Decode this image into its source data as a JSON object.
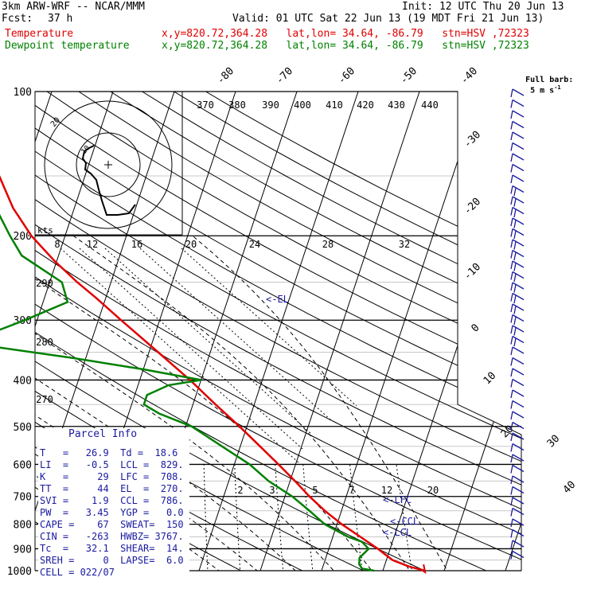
{
  "header": {
    "model": "3km ARW-WRF -- NCAR/MMM",
    "init": "Init: 12 UTC Thu 20 Jun 13",
    "fcst_label": "Fcst:",
    "fcst_value": "37 h",
    "valid": "Valid: 01 UTC Sat 22 Jun 13 (19 MDT Fri 21 Jun 13)",
    "temp_label": "Temperature",
    "temp_info": "x,y=820.72,364.28   lat,lon= 34.64, -86.79   stn=HSV ,72323",
    "dew_label": "Dewpoint temperature",
    "dew_info": "x,y=820.72,364.28   lat,lon= 34.64, -86.79   stn=HSV ,72323",
    "barb_note_1": "Full barb:",
    "barb_note_2": "5 m s",
    "barb_note_sup": "-1"
  },
  "colors": {
    "temperature": "#e00000",
    "dewpoint": "#008000",
    "parcel_text": "#1a1aa0",
    "barbs": "#1a1aa0"
  },
  "chart_data": {
    "type": "line",
    "skewt": true,
    "pressure_levels": [
      "100",
      "200",
      "300",
      "400",
      "500",
      "600",
      "700",
      "800",
      "900",
      "1000"
    ],
    "temperature_ticks": [
      "-80",
      "-70",
      "-60",
      "-50",
      "-40",
      "-30",
      "-20",
      "-10",
      "0",
      "10",
      "20",
      "30",
      "40"
    ],
    "theta_labels": [
      "370",
      "380",
      "390",
      "400",
      "410",
      "420",
      "430",
      "440",
      "290",
      "280",
      "270"
    ],
    "hodograph": {
      "units": "kts",
      "ring_labels": [
        "8",
        "12",
        "16",
        "20",
        "24",
        "28",
        "32"
      ],
      "ring_label_inner": "20",
      "ring_label_small": "10"
    },
    "mixing_ratio_labels": [
      "2",
      "3",
      "5",
      "7",
      "12",
      "20"
    ],
    "annotations": [
      "<-EL",
      "<-LFC",
      "<-CCL",
      "<-LCL"
    ],
    "series": [
      {
        "name": "Temperature",
        "color": "#e00000",
        "points": [
          [
            1000,
            26.9
          ],
          [
            980,
            24
          ],
          [
            950,
            21
          ],
          [
            925,
            19.5
          ],
          [
            900,
            18
          ],
          [
            850,
            14.5
          ],
          [
            800,
            10.8
          ],
          [
            750,
            7.3
          ],
          [
            700,
            4
          ],
          [
            650,
            0.8
          ],
          [
            600,
            -2.8
          ],
          [
            550,
            -6.8
          ],
          [
            500,
            -11.2
          ],
          [
            450,
            -16.3
          ],
          [
            400,
            -21.8
          ],
          [
            350,
            -28.5
          ],
          [
            300,
            -36.3
          ],
          [
            270,
            -41.5
          ],
          [
            250,
            -45.5
          ],
          [
            225,
            -50.5
          ],
          [
            200,
            -55.5
          ],
          [
            175,
            -60
          ],
          [
            150,
            -64
          ],
          [
            130,
            -67
          ],
          [
            115,
            -68
          ],
          [
            100,
            -70
          ]
        ]
      },
      {
        "name": "Dewpoint temperature",
        "color": "#008000",
        "points": [
          [
            1000,
            18.6
          ],
          [
            990,
            16.5
          ],
          [
            970,
            15.8
          ],
          [
            940,
            15.5
          ],
          [
            900,
            16.5
          ],
          [
            870,
            15
          ],
          [
            850,
            12.5
          ],
          [
            800,
            8
          ],
          [
            750,
            4.8
          ],
          [
            700,
            1.2
          ],
          [
            650,
            -3.5
          ],
          [
            600,
            -7.5
          ],
          [
            550,
            -13
          ],
          [
            500,
            -19
          ],
          [
            470,
            -25
          ],
          [
            450,
            -28
          ],
          [
            430,
            -28
          ],
          [
            410,
            -25
          ],
          [
            400,
            -20
          ],
          [
            380,
            -30
          ],
          [
            360,
            -42
          ],
          [
            335,
            -60
          ],
          [
            320,
            -57
          ],
          [
            300,
            -52
          ],
          [
            275,
            -46
          ],
          [
            250,
            -48
          ],
          [
            220,
            -56
          ],
          [
            200,
            -59
          ],
          [
            180,
            -62
          ],
          [
            160,
            -68
          ],
          [
            140,
            -74
          ],
          [
            125,
            -77
          ],
          [
            110,
            -78
          ],
          [
            100,
            -79
          ]
        ]
      }
    ]
  },
  "parcel": {
    "title": "Parcel Info",
    "rows": [
      "T   =   26.9  Td =  18.6",
      "LI  =   -0.5  LCL =  829.",
      "K   =     29  LFC =  708.",
      "TT  =     44  EL  =  270.",
      "SVI =    1.9  CCL =  786.",
      "PW  =   3.45  YGP =   0.0",
      "CAPE =    67  SWEAT=  150",
      "CIN =   -263  HWBZ= 3767.",
      "Tc  =   32.1  SHEAR=  14.",
      "SREH =     0  LAPSE=  6.0",
      "CELL = 022/07"
    ]
  }
}
